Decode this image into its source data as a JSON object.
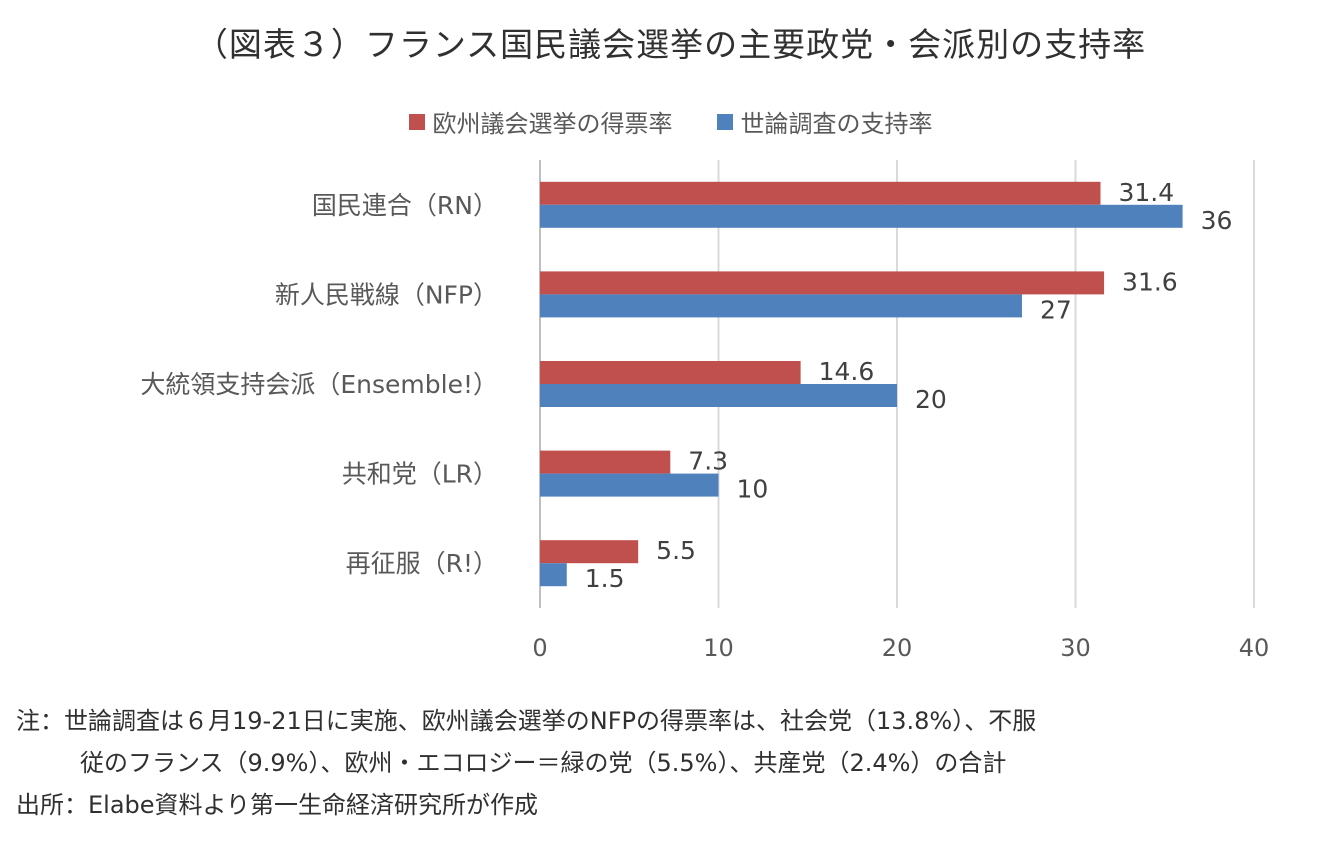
{
  "title": "（図表３）フランス国民議会選挙の主要政党・会派別の支持率",
  "chart_data": {
    "type": "bar",
    "orientation": "horizontal",
    "categories": [
      "国民連合（RN）",
      "新人民戦線（NFP）",
      "大統領支持会派（Ensemble!）",
      "共和党（LR）",
      "再征服（R!）"
    ],
    "series": [
      {
        "name": "欧州議会選挙の得票率",
        "color": "#C0504D",
        "values": [
          31.4,
          31.6,
          14.6,
          7.3,
          5.5
        ],
        "labels": [
          "31.4",
          "31.6",
          "14.6",
          "7.3",
          "5.5"
        ]
      },
      {
        "name": "世論調査の支持率",
        "color": "#4F81BD",
        "values": [
          36,
          27,
          20,
          10,
          1.5
        ],
        "labels": [
          "36",
          "27",
          "20",
          "10",
          "1.5"
        ]
      }
    ],
    "xlim": [
      0,
      40
    ],
    "xticks": [
      "0",
      "10",
      "20",
      "30",
      "40"
    ],
    "grid": true,
    "legend_position": "top"
  },
  "notes": {
    "line1": "注：世論調査は６月19-21日に実施、欧州議会選挙のNFPの得票率は、社会党（13.8%）、不服",
    "line2": "従のフランス（9.9%）、欧州・エコロジー＝緑の党（5.5%）、共産党（2.4%）の合計",
    "source": "出所：Elabe資料より第一生命経済研究所が作成"
  }
}
